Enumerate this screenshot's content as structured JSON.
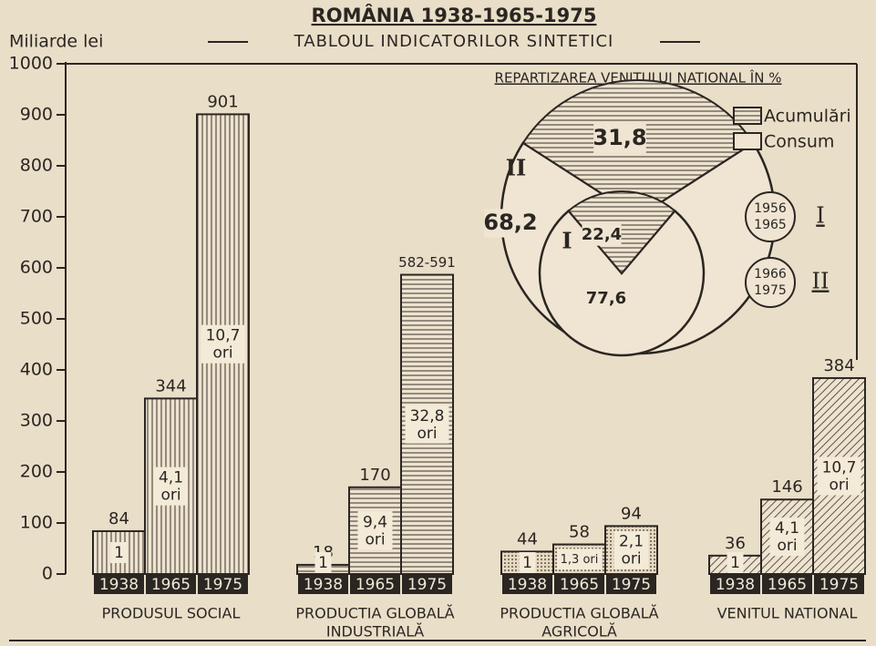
{
  "chart_data": [
    {
      "type": "bar",
      "title": "ROMÂNIA 1938-1965-1975",
      "subtitle": "TABLOUL INDICATORILOR SINTETICI",
      "y_label": "Miliarde lei",
      "categories": [
        [
          "PRODUSUL SOCIAL"
        ],
        [
          "PRODUCTIA GLOBALĂ",
          "INDUSTRIALĂ"
        ],
        [
          "PRODUCTIA GLOBALĂ",
          "AGRICOLĂ"
        ],
        [
          "VENITUL NATIONAL"
        ]
      ],
      "patterns": [
        "vertical",
        "horizontal",
        "dots",
        "diagonal"
      ],
      "color": "#2b2622",
      "series": [
        {
          "name": "1938",
          "values": [
            84,
            18,
            44,
            36
          ],
          "ratio_labels": [
            [
              "1"
            ],
            [
              "1"
            ],
            [
              "1"
            ],
            [
              "1"
            ]
          ]
        },
        {
          "name": "1965",
          "values": [
            344,
            170,
            58,
            146
          ],
          "ratio_labels": [
            [
              "4,1",
              "ori"
            ],
            [
              "9,4",
              "ori"
            ],
            [
              "1,3 ori"
            ],
            [
              "4,1",
              "ori"
            ]
          ]
        },
        {
          "name": "1975",
          "values": [
            901,
            586.5,
            94,
            384
          ],
          "value_labels": [
            "901",
            "582-591",
            "94",
            "384"
          ],
          "ratio_labels": [
            [
              "10,7",
              "ori"
            ],
            [
              "32,8",
              "ori"
            ],
            [
              "2,1",
              "ori"
            ],
            [
              "10,7",
              "ori"
            ]
          ]
        }
      ],
      "ylim": [
        0,
        1000
      ],
      "yticks": [
        0,
        100,
        200,
        300,
        400,
        500,
        600,
        700,
        800,
        900,
        1000
      ]
    },
    {
      "type": "pie",
      "title": "REPARTIZAREA VENITULUI NATIONAL ÎN %",
      "categories": [
        "Acumulări",
        "Consum"
      ],
      "series": [
        {
          "name": "I",
          "period": [
            "1956",
            "1965"
          ],
          "values": [
            22.4,
            77.6
          ],
          "value_labels": [
            "22,4",
            "77,6"
          ]
        },
        {
          "name": "II",
          "period": [
            "1966",
            "1975"
          ],
          "values": [
            31.8,
            68.2
          ],
          "value_labels": [
            "31,8",
            "68,2"
          ]
        }
      ]
    }
  ]
}
